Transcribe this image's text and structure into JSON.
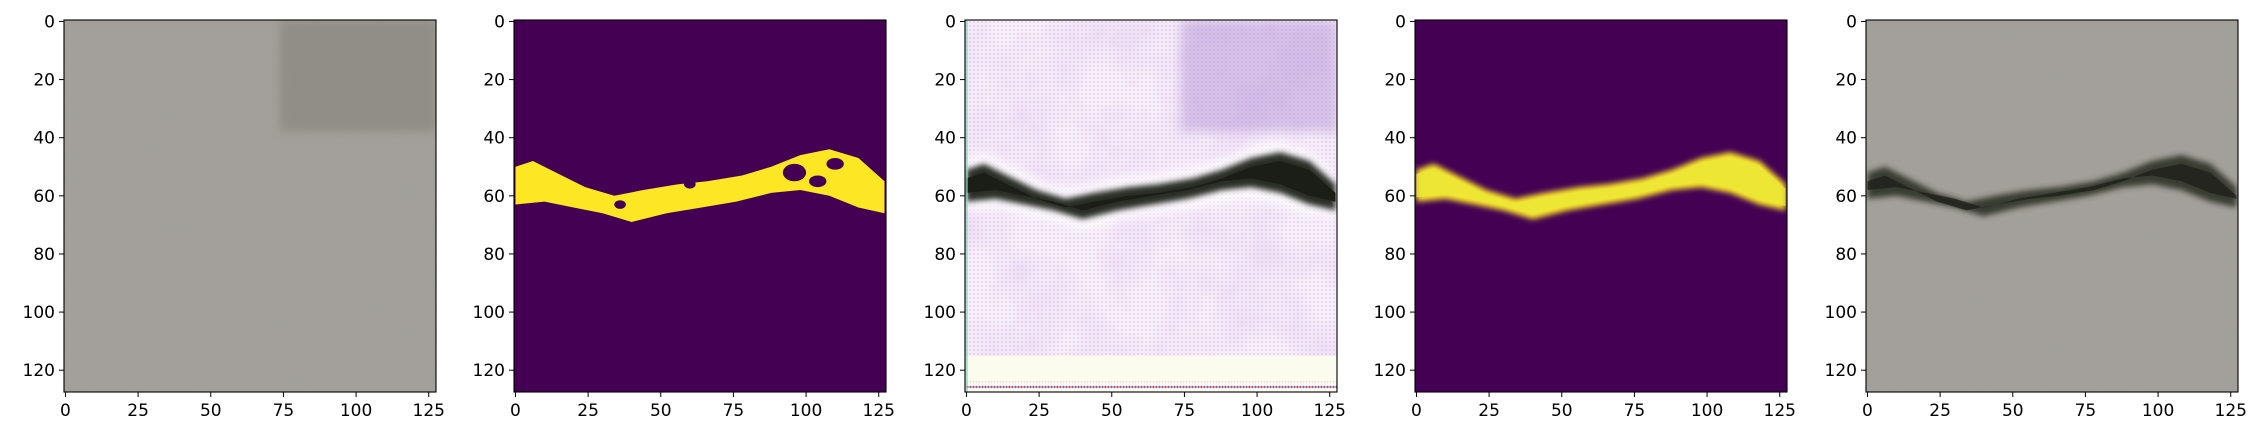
{
  "figure": {
    "panel_count": 5,
    "panels": [
      {
        "id": "input-photo",
        "content": "gray asphalt texture, no crack"
      },
      {
        "id": "target-mask",
        "content": "binary crack mask, yellow on purple"
      },
      {
        "id": "generated-texture",
        "content": "pink/white noisy texture with dark crack"
      },
      {
        "id": "predicted-mask",
        "content": "smooth crack mask, yellow on purple"
      },
      {
        "id": "composited-photo",
        "content": "gray asphalt with dark crack"
      }
    ],
    "colors": {
      "mask_background": "#440154",
      "mask_foreground": "#fde725",
      "asphalt": "#a3a19b",
      "crack_dark": "#2f3128"
    }
  },
  "axes": {
    "x_ticks": [
      "0",
      "25",
      "50",
      "75",
      "100",
      "125"
    ],
    "y_ticks": [
      "0",
      "20",
      "40",
      "60",
      "80",
      "100",
      "120"
    ],
    "xlim": [
      -0.5,
      127.5
    ],
    "ylim": [
      127.5,
      -0.5
    ]
  }
}
